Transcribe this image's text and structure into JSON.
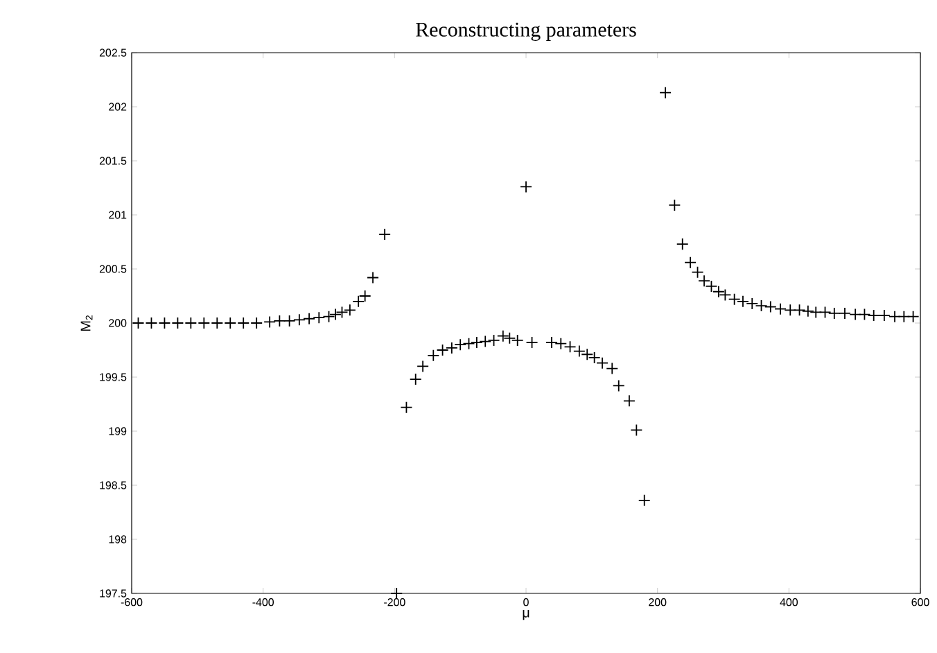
{
  "chart_data": {
    "type": "scatter",
    "title": "Reconstructing parameters",
    "xlabel": "μ",
    "ylabel": "M$_{2}$",
    "xlim": [
      -600,
      600
    ],
    "ylim": [
      197.5,
      202.5
    ],
    "xticks": [
      -600,
      -400,
      -200,
      0,
      200,
      400,
      600
    ],
    "yticks": [
      197.5,
      198,
      198.5,
      199,
      199.5,
      200,
      200.5,
      201,
      201.5,
      202,
      202.5
    ],
    "grid": false,
    "marker": "cross",
    "series": [
      {
        "color": "#000000",
        "x": [
          -590,
          -570,
          -550,
          -530,
          -510,
          -490,
          -470,
          -450,
          -430,
          -410,
          -390,
          -375,
          -360,
          -345,
          -330,
          -315,
          -300,
          -290,
          -280,
          -268,
          -255,
          -245,
          -233,
          -215,
          -197,
          -182,
          -168,
          -157,
          -141,
          -127,
          -113,
          -100,
          -87,
          -75,
          -62,
          -49,
          -35,
          -25,
          -13,
          0,
          9,
          39,
          53,
          67,
          81,
          93,
          104,
          116,
          131,
          141,
          157,
          168,
          180,
          212,
          226,
          238,
          250,
          261,
          271,
          282,
          293,
          303,
          317,
          330,
          344,
          358,
          372,
          387,
          402,
          416,
          429,
          441,
          455,
          469,
          485,
          501,
          515,
          529,
          545,
          561,
          575,
          589
        ],
        "values": [
          200.0,
          200.0,
          200.0,
          200.0,
          200.0,
          200.0,
          200.0,
          200.0,
          200.0,
          200.0,
          200.01,
          200.02,
          200.02,
          200.03,
          200.04,
          200.05,
          200.06,
          200.08,
          200.1,
          200.12,
          200.2,
          200.25,
          200.42,
          200.82,
          197.5,
          199.22,
          199.48,
          199.6,
          199.7,
          199.75,
          199.77,
          199.8,
          199.81,
          199.82,
          199.83,
          199.84,
          199.88,
          199.86,
          199.84,
          201.26,
          199.82,
          199.82,
          199.81,
          199.78,
          199.74,
          199.71,
          199.68,
          199.63,
          199.58,
          199.42,
          199.28,
          199.01,
          198.36,
          202.13,
          201.09,
          200.73,
          200.56,
          200.47,
          200.39,
          200.34,
          200.29,
          200.26,
          200.22,
          200.2,
          200.18,
          200.16,
          200.15,
          200.13,
          200.12,
          200.12,
          200.11,
          200.1,
          200.1,
          200.09,
          200.09,
          200.08,
          200.08,
          200.07,
          200.07,
          200.06,
          200.06,
          200.06
        ]
      }
    ]
  }
}
